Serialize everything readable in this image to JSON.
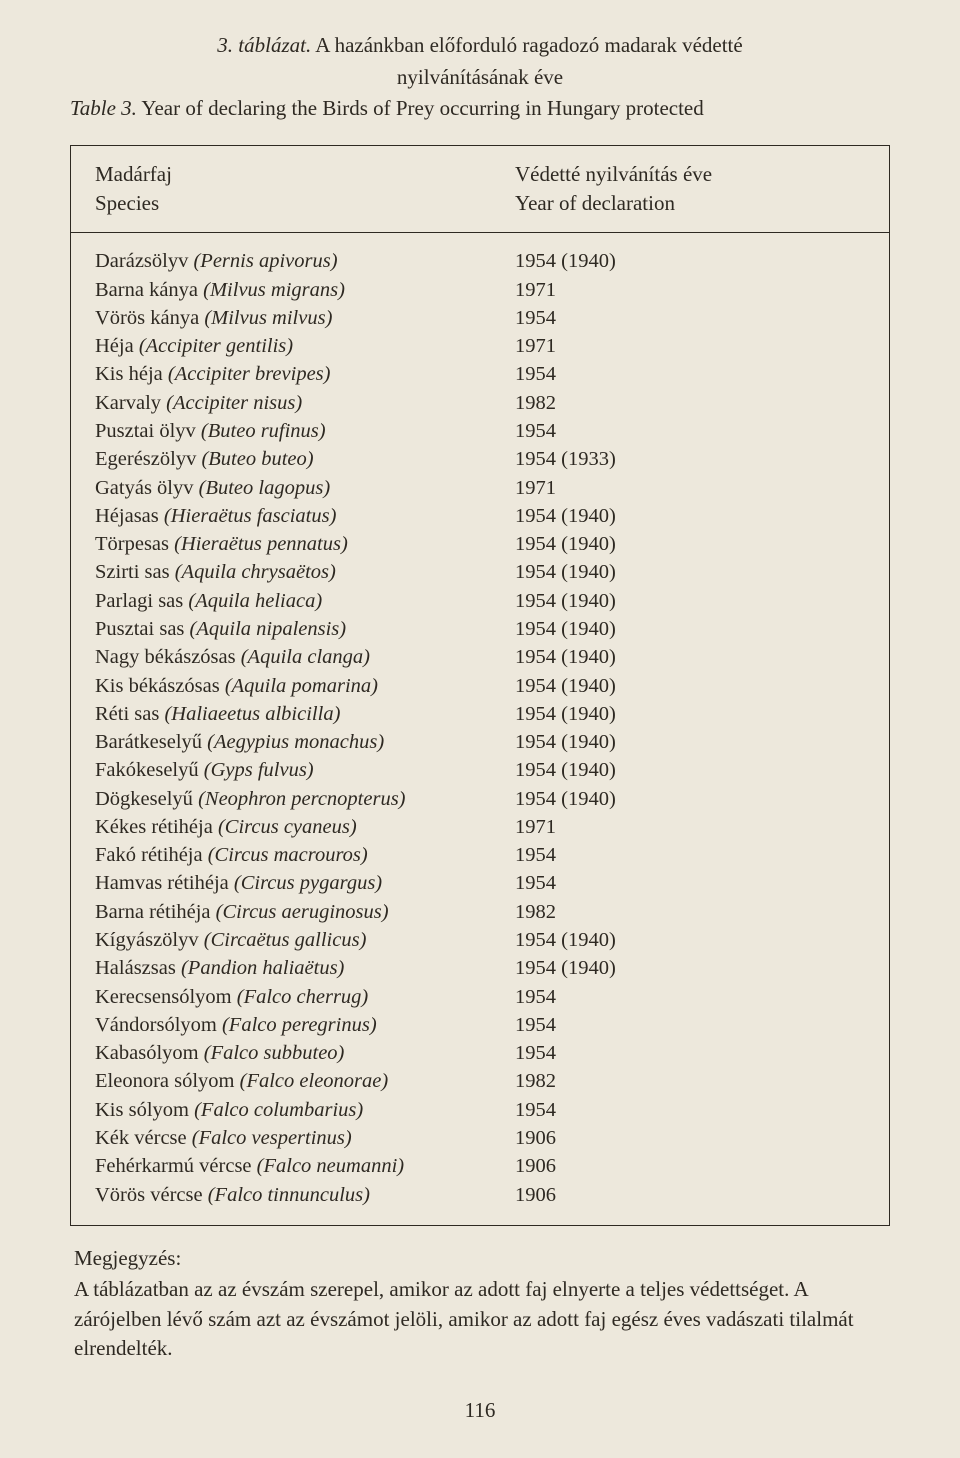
{
  "caption": {
    "line1_prefix": "3. táblázat.",
    "line1_text": " A hazánkban előforduló ragadozó madarak védetté",
    "line2": "nyilvánításának éve",
    "line3_prefix": "Table 3.",
    "line3_text": " Year of declaring the Birds of Prey occurring in Hungary protected"
  },
  "header": {
    "species_hu": "Madárfaj",
    "species_en": "Species",
    "year_hu": "Védetté nyilvánítás éve",
    "year_en": "Year of declaration"
  },
  "rows": [
    {
      "common": "Darázsölyv ",
      "latin": "(Pernis apivorus)",
      "year": "1954 (1940)"
    },
    {
      "common": "Barna kánya ",
      "latin": "(Milvus migrans)",
      "year": "1971"
    },
    {
      "common": "Vörös kánya ",
      "latin": "(Milvus milvus)",
      "year": "1954"
    },
    {
      "common": "Héja ",
      "latin": "(Accipiter gentilis)",
      "year": "1971"
    },
    {
      "common": "Kis héja ",
      "latin": "(Accipiter brevipes)",
      "year": "1954"
    },
    {
      "common": "Karvaly ",
      "latin": "(Accipiter nisus)",
      "year": "1982"
    },
    {
      "common": "Pusztai ölyv ",
      "latin": "(Buteo rufinus)",
      "year": "1954"
    },
    {
      "common": "Egerészölyv ",
      "latin": "(Buteo buteo)",
      "year": "1954 (1933)"
    },
    {
      "common": "Gatyás ölyv ",
      "latin": "(Buteo lagopus)",
      "year": "1971"
    },
    {
      "common": "Héjasas ",
      "latin": "(Hieraëtus fasciatus)",
      "year": "1954 (1940)"
    },
    {
      "common": "Törpesas ",
      "latin": "(Hieraëtus pennatus)",
      "year": "1954 (1940)"
    },
    {
      "common": "Szirti sas ",
      "latin": "(Aquila chrysaëtos)",
      "year": "1954 (1940)"
    },
    {
      "common": "Parlagi sas ",
      "latin": "(Aquila heliaca)",
      "year": "1954 (1940)"
    },
    {
      "common": "Pusztai sas ",
      "latin": "(Aquila nipalensis)",
      "year": "1954 (1940)"
    },
    {
      "common": "Nagy békászósas ",
      "latin": "(Aquila clanga)",
      "year": "1954 (1940)"
    },
    {
      "common": "Kis békászósas ",
      "latin": "(Aquila pomarina)",
      "year": "1954 (1940)"
    },
    {
      "common": "Réti sas ",
      "latin": "(Haliaeetus albicilla)",
      "year": "1954 (1940)"
    },
    {
      "common": "Barátkeselyű ",
      "latin": "(Aegypius monachus)",
      "year": "1954 (1940)"
    },
    {
      "common": "Fakókeselyű ",
      "latin": "(Gyps fulvus)",
      "year": "1954 (1940)"
    },
    {
      "common": "Dögkeselyű ",
      "latin": "(Neophron percnopterus)",
      "year": "1954 (1940)"
    },
    {
      "common": "Kékes rétihéja ",
      "latin": "(Circus cyaneus)",
      "year": "1971"
    },
    {
      "common": "Fakó rétihéja ",
      "latin": "(Circus macrouros)",
      "year": "1954"
    },
    {
      "common": "Hamvas rétihéja ",
      "latin": "(Circus pygargus)",
      "year": "1954"
    },
    {
      "common": "Barna rétihéja ",
      "latin": "(Circus aeruginosus)",
      "year": "1982"
    },
    {
      "common": "Kígyászölyv ",
      "latin": "(Circaëtus gallicus)",
      "year": "1954 (1940)"
    },
    {
      "common": "Halászsas ",
      "latin": "(Pandion haliaëtus)",
      "year": "1954 (1940)"
    },
    {
      "common": "Kerecsensólyom ",
      "latin": "(Falco cherrug)",
      "year": "1954"
    },
    {
      "common": "Vándorsólyom ",
      "latin": "(Falco peregrinus)",
      "year": "1954"
    },
    {
      "common": "Kabasólyom ",
      "latin": "(Falco subbuteo)",
      "year": "1954"
    },
    {
      "common": "Eleonora sólyom ",
      "latin": "(Falco eleonorae)",
      "year": "1982"
    },
    {
      "common": "Kis sólyom ",
      "latin": "(Falco columbarius)",
      "year": "1954"
    },
    {
      "common": "Kék vércse ",
      "latin": "(Falco vespertinus)",
      "year": "1906"
    },
    {
      "common": "Fehérkarmú vércse ",
      "latin": "(Falco neumanni)",
      "year": "1906"
    },
    {
      "common": "Vörös vércse ",
      "latin": "(Falco tinnunculus)",
      "year": "1906"
    }
  ],
  "notes": {
    "heading": "Megjegyzés:",
    "body": "A táblázatban az az évszám szerepel, amikor az adott faj elnyerte a teljes védettséget. A zárójelben lévő szám azt az évszámot jelöli, amikor az adott faj egész éves vadászati tilalmát elrendelték."
  },
  "page_number": "116"
}
